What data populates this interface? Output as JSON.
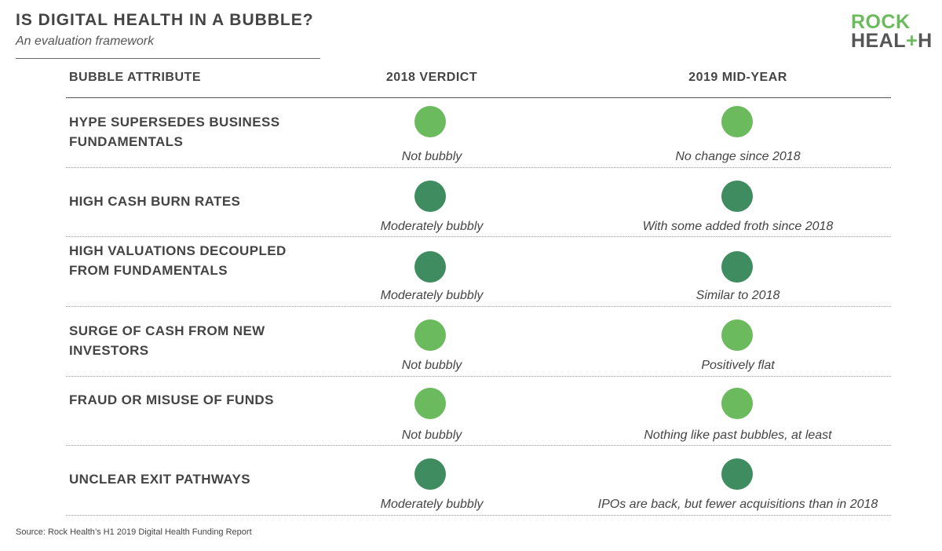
{
  "header": {
    "title": "IS DIGITAL HEALTH IN A BUBBLE?",
    "subtitle": "An evaluation framework"
  },
  "logo": {
    "line1": "ROCK",
    "line2_a": "HEAL",
    "line2_plus": "+",
    "line2_b": "H"
  },
  "columns": {
    "attribute": "BUBBLE ATTRIBUTE",
    "verdict_2018": "2018 VERDICT",
    "midyear_2019": "2019 MID-YEAR"
  },
  "colors": {
    "not_bubbly": "#6cba5e",
    "moderately_bubbly": "#3e8c60"
  },
  "rows": [
    {
      "attribute": "HYPE SUPERSEDES BUSINESS FUNDAMENTALS",
      "verdict_2018": "Not bubbly",
      "status_2018": "not_bubbly",
      "midyear_2019": "No change since 2018",
      "status_2019": "not_bubbly"
    },
    {
      "attribute": "HIGH CASH BURN RATES",
      "verdict_2018": "Moderately bubbly",
      "status_2018": "moderately_bubbly",
      "midyear_2019": "With some added froth since 2018",
      "status_2019": "moderately_bubbly"
    },
    {
      "attribute": "HIGH VALUATIONS DECOUPLED FROM FUNDAMENTALS",
      "verdict_2018": "Moderately bubbly",
      "status_2018": "moderately_bubbly",
      "midyear_2019": "Similar to 2018",
      "status_2019": "moderately_bubbly"
    },
    {
      "attribute": "SURGE OF CASH FROM NEW INVESTORS",
      "verdict_2018": "Not bubbly",
      "status_2018": "not_bubbly",
      "midyear_2019": "Positively flat",
      "status_2019": "not_bubbly"
    },
    {
      "attribute": "FRAUD OR MISUSE OF FUNDS",
      "verdict_2018": "Not bubbly",
      "status_2018": "not_bubbly",
      "midyear_2019": "Nothing like past bubbles, at least",
      "status_2019": "not_bubbly"
    },
    {
      "attribute": "UNCLEAR EXIT PATHWAYS",
      "verdict_2018": "Moderately bubbly",
      "status_2018": "moderately_bubbly",
      "midyear_2019": "IPOs are back, but fewer acquisitions than in 2018",
      "status_2019": "moderately_bubbly"
    }
  ],
  "source": "Source: Rock Health’s H1 2019 Digital Health Funding Report"
}
